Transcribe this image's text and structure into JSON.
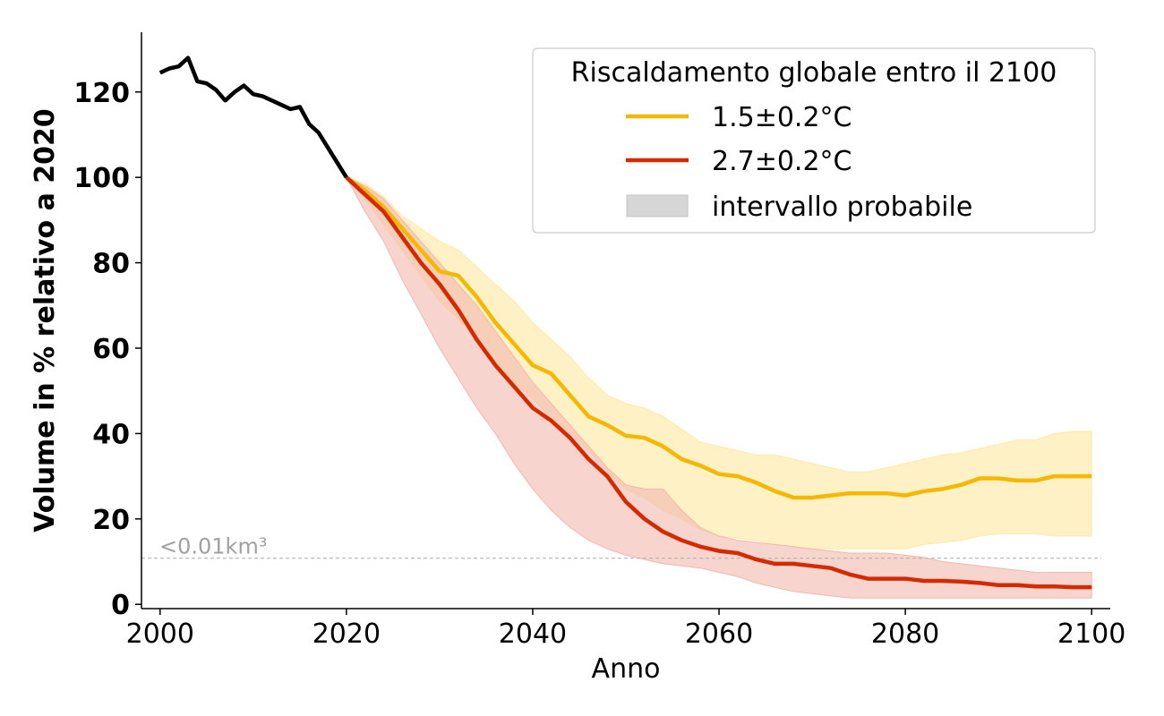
{
  "chart_data": {
    "type": "line",
    "xlabel": "Anno",
    "ylabel": "Volume in % relativo a 2020",
    "xlim": [
      1998,
      2102
    ],
    "ylim": [
      -1,
      134
    ],
    "x_ticks": [
      2000,
      2020,
      2040,
      2060,
      2080,
      2100
    ],
    "y_ticks": [
      0,
      20,
      40,
      60,
      80,
      100,
      120
    ],
    "grid": false,
    "legend": {
      "title": "Riscaldamento globale entro il 2100",
      "placement": "top-right",
      "entries": [
        {
          "label": "1.5±0.2°C",
          "type": "line",
          "color": "#f5b800"
        },
        {
          "label": "2.7±0.2°C",
          "type": "line",
          "color": "#d42a00"
        },
        {
          "label": "intervallo probabile",
          "type": "band",
          "color": "#d6d6d6"
        }
      ]
    },
    "reference_line": {
      "y": 10.8,
      "label": "<0.01km³",
      "color": "#b5b5b5"
    },
    "historical": {
      "color": "#000000",
      "x": [
        2000,
        2001,
        2002,
        2003,
        2004,
        2005,
        2006,
        2007,
        2008,
        2009,
        2010,
        2011,
        2012,
        2013,
        2014,
        2015,
        2016,
        2017,
        2018,
        2019,
        2020
      ],
      "y": [
        124.5,
        125.5,
        126,
        128,
        122.5,
        122,
        120.5,
        118,
        120,
        121.5,
        119.5,
        119,
        118,
        117,
        116,
        116.5,
        112.5,
        110.5,
        107,
        103.5,
        100
      ]
    },
    "series": [
      {
        "name": "1.5±0.2°C",
        "color": "#f5b800",
        "band_color": "#fde9a8",
        "x": [
          2020,
          2022,
          2024,
          2026,
          2028,
          2030,
          2032,
          2034,
          2036,
          2038,
          2040,
          2042,
          2044,
          2046,
          2048,
          2050,
          2052,
          2054,
          2056,
          2058,
          2060,
          2062,
          2064,
          2066,
          2068,
          2070,
          2072,
          2074,
          2076,
          2078,
          2080,
          2082,
          2084,
          2086,
          2088,
          2090,
          2092,
          2094,
          2096,
          2098,
          2100
        ],
        "y": [
          100,
          97,
          93,
          88,
          83,
          78,
          77,
          72,
          66,
          61,
          56,
          54,
          49,
          44,
          42,
          39.5,
          39,
          37,
          34,
          32.5,
          30.5,
          30,
          28.5,
          26.5,
          25,
          25,
          25.5,
          26,
          26,
          26,
          25.5,
          26.5,
          27,
          28,
          29.5,
          29.5,
          29,
          29,
          30,
          30,
          30
        ],
        "lower": [
          100,
          95,
          89,
          83,
          77,
          71,
          67,
          62,
          57,
          52,
          48,
          44,
          40,
          36,
          31,
          27,
          25,
          22,
          20,
          17.5,
          16,
          15.5,
          15,
          14,
          13.5,
          13,
          13,
          13,
          13,
          13,
          13,
          14,
          14.5,
          15,
          16,
          16.5,
          16.5,
          16.5,
          16,
          16,
          16
        ],
        "upper": [
          100,
          98.5,
          95.5,
          91,
          88,
          85,
          83,
          79,
          75,
          71,
          66,
          62,
          58,
          53,
          49,
          47,
          46,
          44,
          41,
          38,
          37,
          36,
          35,
          35,
          34,
          33,
          32,
          31,
          31,
          32,
          33,
          34,
          35,
          35.5,
          36.5,
          37.5,
          38.5,
          38.5,
          40,
          40.5,
          40.5
        ]
      },
      {
        "name": "2.7±0.2°C",
        "color": "#d42a00",
        "band_color": "#f2b8ad",
        "x": [
          2020,
          2022,
          2024,
          2026,
          2028,
          2030,
          2032,
          2034,
          2036,
          2038,
          2040,
          2042,
          2044,
          2046,
          2048,
          2050,
          2052,
          2054,
          2056,
          2058,
          2060,
          2062,
          2064,
          2066,
          2068,
          2070,
          2072,
          2074,
          2076,
          2078,
          2080,
          2082,
          2084,
          2086,
          2088,
          2090,
          2092,
          2094,
          2096,
          2098,
          2100
        ],
        "y": [
          100,
          96,
          92,
          86,
          80,
          75,
          69,
          62,
          56,
          51,
          46,
          43,
          39,
          34,
          30,
          24,
          20,
          17,
          15,
          13.5,
          12.5,
          12,
          10.5,
          9.5,
          9.5,
          9,
          8.5,
          7,
          6,
          6,
          6,
          5.5,
          5.5,
          5.3,
          5,
          4.5,
          4.5,
          4.2,
          4.2,
          4,
          4
        ],
        "lower": [
          100,
          92,
          85,
          76,
          68,
          60,
          53,
          46,
          40,
          33,
          27,
          22,
          18,
          15,
          13,
          11.5,
          10.5,
          9.5,
          9,
          8.5,
          7.5,
          6.5,
          5,
          4,
          3,
          2.5,
          2,
          1.5,
          1.5,
          1.5,
          1.5,
          1.5,
          1.5,
          1.5,
          1.5,
          1.5,
          1.5,
          1.5,
          1.5,
          1.5,
          1.5
        ],
        "upper": [
          100,
          98,
          95,
          90,
          85,
          80,
          75,
          70,
          64,
          58,
          52,
          47,
          42,
          37,
          32,
          28,
          27,
          27,
          22,
          18,
          16,
          15,
          14.5,
          14,
          13.5,
          13,
          12.5,
          12,
          12,
          12,
          11.5,
          11,
          10,
          9.5,
          9,
          8.5,
          8,
          7.5,
          7.5,
          7.5,
          7.5
        ]
      }
    ]
  }
}
